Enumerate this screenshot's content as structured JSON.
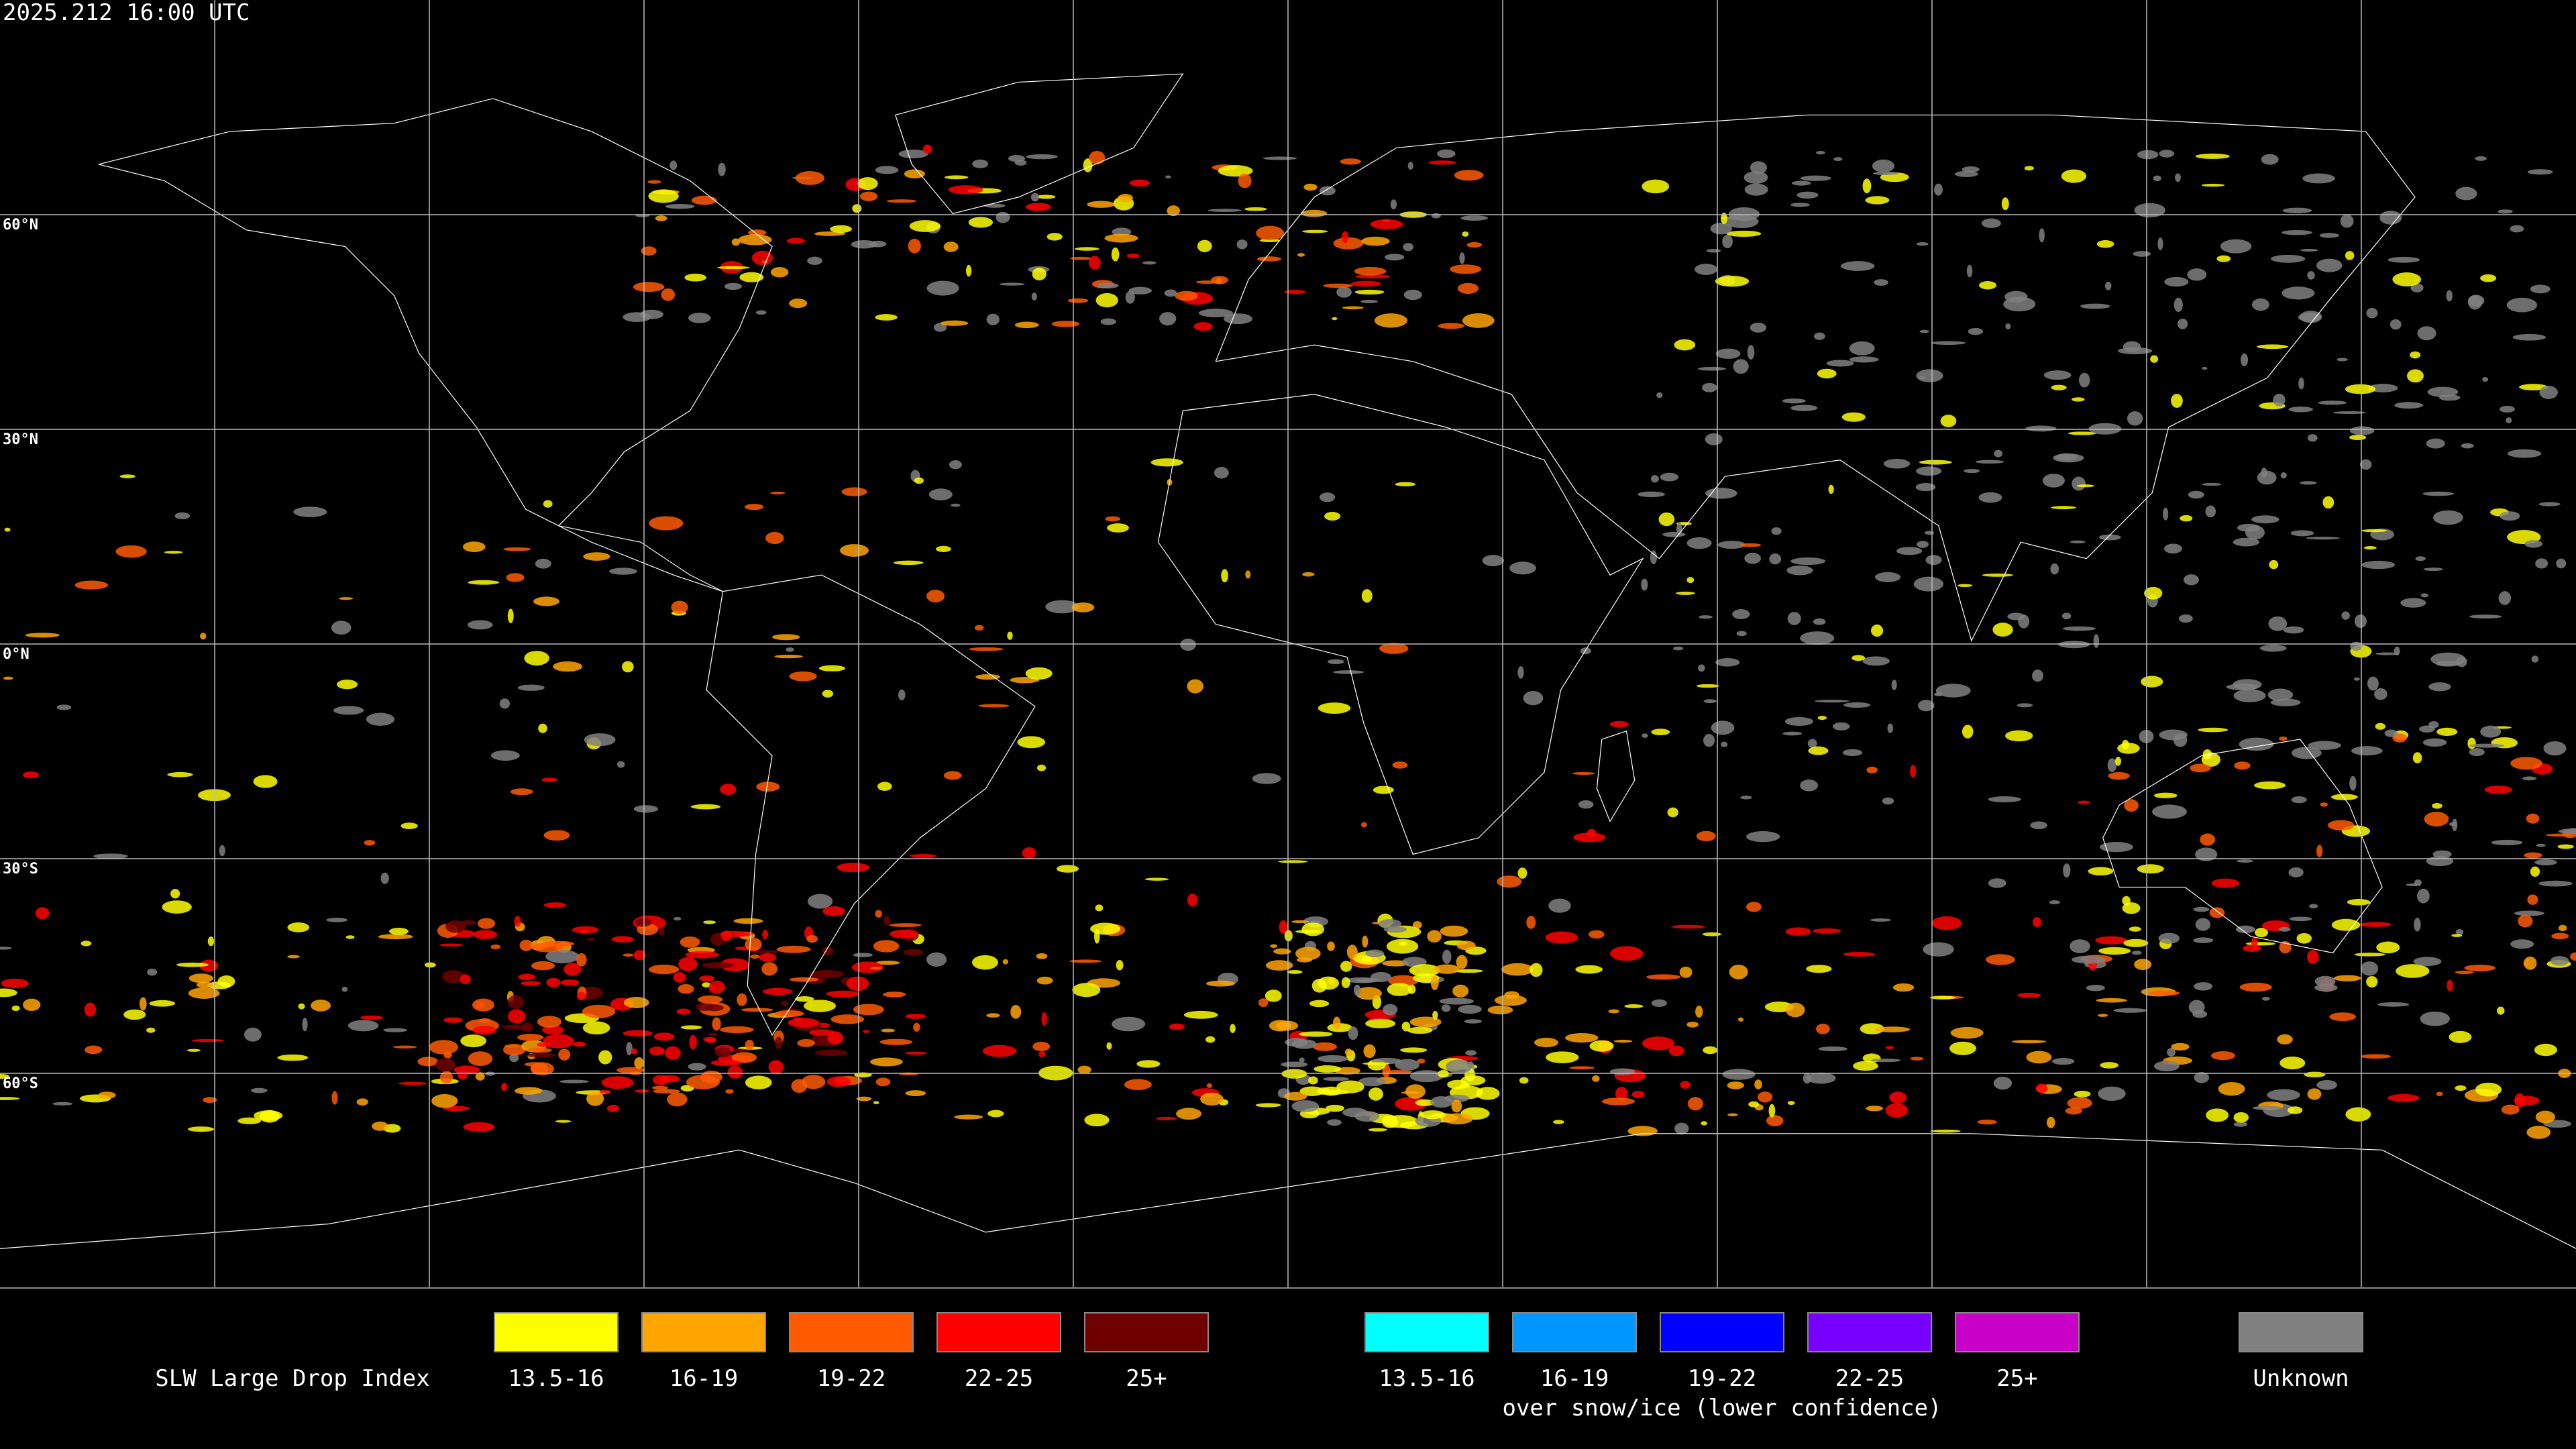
{
  "header": {
    "timestamp": "2025.212 16:00 UTC"
  },
  "map": {
    "latitude_labels": [
      "60°N",
      "30°N",
      "0°N",
      "30°S",
      "60°S"
    ]
  },
  "legend": {
    "title": "SLW Large Drop Index",
    "groups": [
      {
        "items": [
          {
            "label": "13.5-16",
            "color": "#ffff00"
          },
          {
            "label": "16-19",
            "color": "#ffa500"
          },
          {
            "label": "19-22",
            "color": "#ff5a00"
          },
          {
            "label": "22-25",
            "color": "#ff0000"
          },
          {
            "label": "25+",
            "color": "#6e0000"
          }
        ]
      },
      {
        "items": [
          {
            "label": "13.5-16",
            "color": "#00ffff"
          },
          {
            "label": "16-19",
            "color": "#0096ff"
          },
          {
            "label": "19-22",
            "color": "#0000ff"
          },
          {
            "label": "22-25",
            "color": "#7800ff"
          },
          {
            "label": "25+",
            "color": "#c800c8"
          }
        ],
        "caption": "over snow/ice (lower confidence)"
      },
      {
        "items": [
          {
            "label": "Unknown",
            "color": "#808080"
          }
        ]
      }
    ]
  }
}
